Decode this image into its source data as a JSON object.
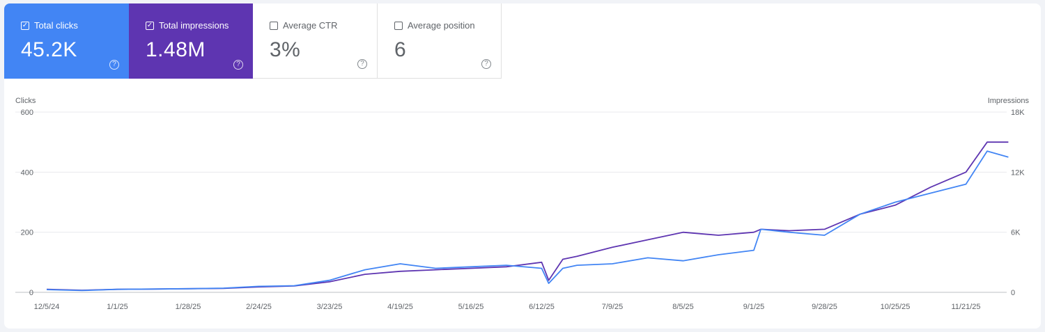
{
  "cards": {
    "clicks": {
      "label": "Total clicks",
      "value": "45.2K",
      "checked": true
    },
    "impressions": {
      "label": "Total impressions",
      "value": "1.48M",
      "checked": true
    },
    "ctr": {
      "label": "Average CTR",
      "value": "3%",
      "checked": false
    },
    "position": {
      "label": "Average position",
      "value": "6",
      "checked": false
    }
  },
  "colors": {
    "clicks": "#4285f4",
    "impressions": "#5e35b1"
  },
  "chart_data": {
    "type": "line",
    "ylabel_left": "Clicks",
    "ylabel_right": "Impressions",
    "y_left_ticks": [
      "0",
      "200",
      "400",
      "600"
    ],
    "y_left_range": [
      0,
      600
    ],
    "y_right_ticks": [
      "0",
      "6K",
      "12K",
      "18K"
    ],
    "y_right_range": [
      0,
      18000
    ],
    "x_tick_labels": [
      "12/5/24",
      "1/1/25",
      "1/28/25",
      "2/24/25",
      "3/23/25",
      "4/19/25",
      "5/16/25",
      "6/12/25",
      "7/9/25",
      "8/5/25",
      "9/1/25",
      "9/28/25",
      "10/25/25",
      "11/21/25"
    ],
    "grid": true,
    "series": [
      {
        "name": "Clicks",
        "axis": "left",
        "x_tick_index": [
          0,
          0.5,
          1,
          1.5,
          2,
          2.5,
          3,
          3.5,
          4,
          4.5,
          5,
          5.5,
          6,
          6.5,
          7,
          7.1,
          7.3,
          7.5,
          8,
          8.5,
          9,
          9.5,
          10,
          10.1,
          10.5,
          11,
          11.5,
          12,
          12.5,
          13,
          13.3,
          13.6
        ],
        "values": [
          9,
          6,
          10,
          11,
          12,
          14,
          20,
          22,
          40,
          75,
          95,
          80,
          85,
          90,
          80,
          30,
          80,
          90,
          95,
          115,
          105,
          125,
          140,
          210,
          200,
          190,
          260,
          300,
          330,
          360,
          470,
          450
        ]
      },
      {
        "name": "Impressions",
        "axis": "right",
        "x_tick_index": [
          0,
          0.5,
          1,
          1.5,
          2,
          2.5,
          3,
          3.5,
          4,
          4.5,
          5,
          5.5,
          6,
          6.5,
          7,
          7.1,
          7.3,
          7.5,
          8,
          8.5,
          9,
          9.5,
          10,
          10.1,
          10.5,
          11,
          11.5,
          12,
          12.5,
          13,
          13.3,
          13.6
        ],
        "values": [
          300,
          210,
          300,
          330,
          360,
          390,
          540,
          630,
          1050,
          1800,
          2100,
          2250,
          2400,
          2550,
          3000,
          1200,
          3300,
          3600,
          4500,
          5250,
          6000,
          5700,
          6000,
          6300,
          6150,
          6300,
          7800,
          8700,
          10500,
          12000,
          15000,
          15000
        ]
      }
    ]
  }
}
